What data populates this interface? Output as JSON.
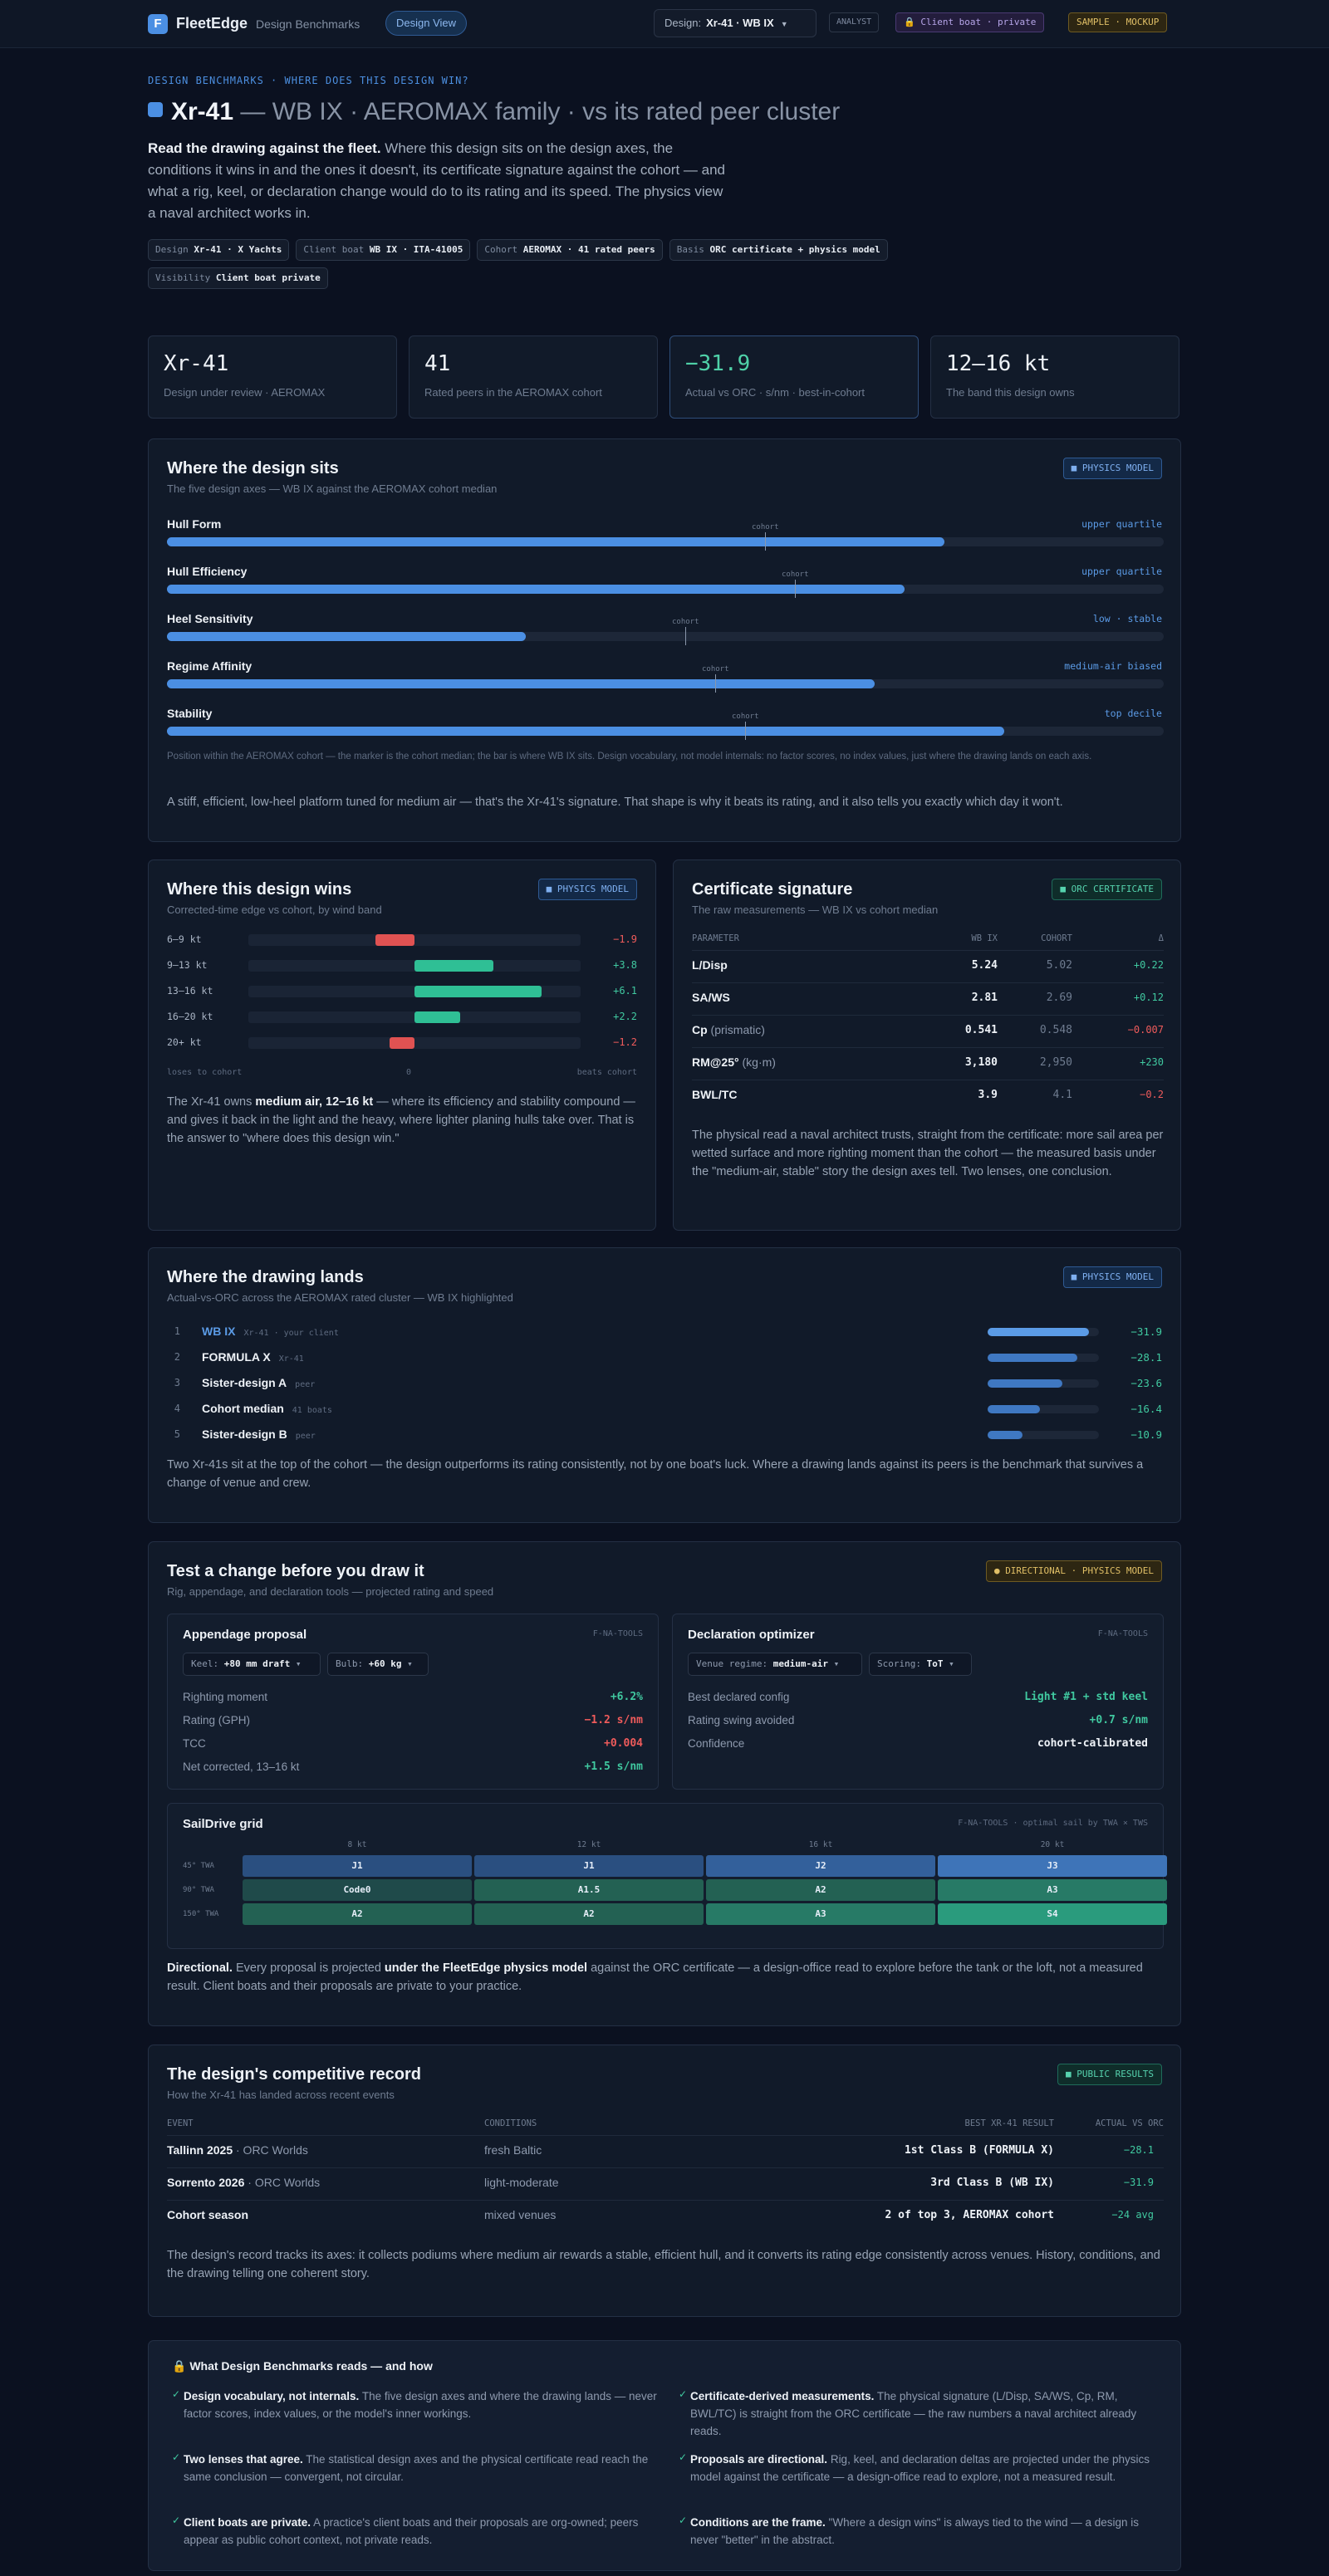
{
  "topbar": {
    "logo": "F",
    "brand": "FleetEdge",
    "subtitle": "Design Benchmarks",
    "view": "Design View",
    "design_label": "Design:",
    "design_value": "Xr-41 · WB IX",
    "analyst": "ANALYST",
    "client": "Client boat · private",
    "sample": "SAMPLE · MOCKUP"
  },
  "hero": {
    "eyebrow": "DESIGN BENCHMARKS · WHERE DOES THIS DESIGN WIN?",
    "title": "Xr-41",
    "title_rest": "— WB IX · AEROMAX family · vs its rated peer cluster",
    "lede_bold": "Read the drawing against the fleet.",
    "lede": " Where this design sits on the design axes, the conditions it wins in and the ones it doesn't, its certificate signature against the cohort — and what a rig, keel, or declaration change would do to its rating and its speed. The physics view a naval architect works in.",
    "chips": [
      {
        "k": "Design",
        "v": "Xr-41 · X Yachts"
      },
      {
        "k": "Client boat",
        "v": "WB IX · ITA-41005"
      },
      {
        "k": "Cohort",
        "v": "AEROMAX · 41 rated peers"
      },
      {
        "k": "Basis",
        "v": "ORC certificate + physics model"
      },
      {
        "k": "Visibility",
        "v": "Client boat private"
      }
    ]
  },
  "kpis": [
    {
      "v": "Xr-41",
      "l": "Design under review · AEROMAX"
    },
    {
      "v": "41",
      "l": "Rated peers in the AEROMAX cohort"
    },
    {
      "v": "−31.9",
      "l": "Actual vs ORC · s/nm · best-in-cohort"
    },
    {
      "v": "12–16 kt",
      "l": "The band this design owns"
    }
  ],
  "sits": {
    "title": "Where the design sits",
    "sub": "The five design axes — WB IX against the AEROMAX cohort median",
    "tag": "PHYSICS MODEL",
    "cohort_word": "cohort",
    "axes": [
      {
        "name": "Hull Form",
        "status": "upper quartile",
        "value": 0.78,
        "cohort": 0.6
      },
      {
        "name": "Hull Efficiency",
        "status": "upper quartile",
        "value": 0.74,
        "cohort": 0.63
      },
      {
        "name": "Heel Sensitivity",
        "status": "low · stable",
        "value": 0.36,
        "cohort": 0.52
      },
      {
        "name": "Regime Affinity",
        "status": "medium-air biased",
        "value": 0.71,
        "cohort": 0.55
      },
      {
        "name": "Stability",
        "status": "top decile",
        "value": 0.84,
        "cohort": 0.58
      }
    ],
    "note": "Position within the AEROMAX cohort — the marker is the cohort median; the bar is where WB IX sits. Design vocabulary, not model internals: no factor scores, no index values, just where the drawing lands on each axis.",
    "summary": "A stiff, efficient, low-heel platform tuned for medium air — that's the Xr-41's signature. That shape is why it beats its rating, and it also tells you exactly which day it won't."
  },
  "wins": {
    "title": "Where this design wins",
    "sub": "Corrected-time edge vs cohort, by wind band",
    "tag": "PHYSICS MODEL",
    "bands": [
      {
        "label": "6–9 kt",
        "value": -1.9,
        "text": "−1.9"
      },
      {
        "label": "9–13 kt",
        "value": 3.8,
        "text": "+3.8"
      },
      {
        "label": "13–16 kt",
        "value": 6.1,
        "text": "+6.1"
      },
      {
        "label": "16–20 kt",
        "value": 2.2,
        "text": "+2.2"
      },
      {
        "label": "20+ kt",
        "value": -1.2,
        "text": "−1.2"
      }
    ],
    "axis_left": "loses to cohort",
    "axis_mid": "0",
    "axis_right": "beats cohort",
    "text_a": "The Xr-41 owns ",
    "text_b": "medium air, 12–16 kt",
    "text_c": " — where its efficiency and stability compound — and gives it back in the light and the heavy, where lighter planing hulls take over. That is the answer to \"where does this design win.\""
  },
  "cert": {
    "title": "Certificate signature",
    "sub": "The raw measurements — WB IX vs cohort median",
    "tag": "ORC CERTIFICATE",
    "headers": [
      "PARAMETER",
      "WB IX",
      "COHORT",
      "Δ"
    ],
    "rows": [
      {
        "p": "L/Disp",
        "u": "",
        "wb": "5.24",
        "co": "5.02",
        "d": "+0.22",
        "s": "pos"
      },
      {
        "p": "SA/WS",
        "u": "",
        "wb": "2.81",
        "co": "2.69",
        "d": "+0.12",
        "s": "pos"
      },
      {
        "p": "Cp",
        "u": " (prismatic)",
        "wb": "0.541",
        "co": "0.548",
        "d": "−0.007",
        "s": "neg"
      },
      {
        "p": "RM@25°",
        "u": " (kg·m)",
        "wb": "3,180",
        "co": "2,950",
        "d": "+230",
        "s": "pos"
      },
      {
        "p": "BWL/TC",
        "u": "",
        "wb": "3.9",
        "co": "4.1",
        "d": "−0.2",
        "s": "neg"
      }
    ],
    "text": "The physical read a naval architect trusts, straight from the certificate: more sail area per wetted surface and more righting moment than the cohort — the measured basis under the \"medium-air, stable\" story the design axes tell. Two lenses, one conclusion."
  },
  "lands": {
    "title": "Where the drawing lands",
    "sub": "Actual-vs-ORC across the AEROMAX rated cluster — WB IX highlighted",
    "tag": "PHYSICS MODEL",
    "rows": [
      {
        "n": "1",
        "name": "WB IX",
        "meta": "Xr-41 · your client",
        "v": 31.9,
        "t": "−31.9"
      },
      {
        "n": "2",
        "name": "FORMULA X",
        "meta": "Xr-41",
        "v": 28.1,
        "t": "−28.1"
      },
      {
        "n": "3",
        "name": "Sister-design A",
        "meta": "peer",
        "v": 23.6,
        "t": "−23.6"
      },
      {
        "n": "4",
        "name": "Cohort median",
        "meta": "41 boats",
        "v": 16.4,
        "t": "−16.4"
      },
      {
        "n": "5",
        "name": "Sister-design B",
        "meta": "peer",
        "v": 10.9,
        "t": "−10.9"
      }
    ],
    "text": "Two Xr-41s sit at the top of the cohort — the design outperforms its rating consistently, not by one boat's luck. Where a drawing lands against its peers is the benchmark that survives a change of venue and crew."
  },
  "test": {
    "title": "Test a change before you draw it",
    "sub": "Rig, appendage, and declaration tools — projected rating and speed",
    "tag": "DIRECTIONAL · PHYSICS MODEL",
    "appendage": {
      "title": "Appendage proposal",
      "tool": "F-NA-TOOLS",
      "keel_k": "Keel:",
      "keel_v": "+80 mm draft",
      "bulb_k": "Bulb:",
      "bulb_v": "+60 kg",
      "rows": [
        {
          "l": "Righting moment",
          "v": "+6.2%",
          "s": "pos"
        },
        {
          "l": "Rating (GPH)",
          "v": "−1.2 s/nm",
          "s": "neg"
        },
        {
          "l": "TCC",
          "v": "+0.004",
          "s": "neg"
        },
        {
          "l": "Net corrected, 13–16 kt",
          "v": "+1.5 s/nm",
          "s": "pos"
        }
      ]
    },
    "decl": {
      "title": "Declaration optimizer",
      "tool": "F-NA-TOOLS",
      "venue_k": "Venue regime:",
      "venue_v": "medium-air",
      "scoring_k": "Scoring:",
      "scoring_v": "ToT",
      "rows": [
        {
          "l": "Best declared config",
          "v": "Light #1 + std keel",
          "s": "pos"
        },
        {
          "l": "Rating swing avoided",
          "v": "+0.7 s/nm",
          "s": "pos"
        },
        {
          "l": "Confidence",
          "v": "cohort-calibrated",
          "s": "white"
        }
      ]
    },
    "grid": {
      "title": "SailDrive grid",
      "tool": "F-NA-TOOLS · optimal sail by TWA × TWS",
      "cols": [
        "8 kt",
        "12 kt",
        "16 kt",
        "20 kt"
      ],
      "rows": [
        {
          "l": "45° TWA",
          "cells": [
            "J1",
            "J1",
            "J2",
            "J3"
          ]
        },
        {
          "l": "90° TWA",
          "cells": [
            "Code0",
            "A1.5",
            "A2",
            "A3"
          ]
        },
        {
          "l": "150° TWA",
          "cells": [
            "A2",
            "A2",
            "A3",
            "S4"
          ]
        }
      ]
    },
    "dir_bold": "Directional.",
    "dir_a": " Every proposal is projected ",
    "dir_b": "under the FleetEdge physics model",
    "dir_c": " against the ORC certificate — a design-office read to explore before the tank or the loft, not a measured result. Client boats and their proposals are private to your practice."
  },
  "record": {
    "title": "The design's competitive record",
    "sub": "How the Xr-41 has landed across recent events",
    "tag": "PUBLIC RESULTS",
    "headers": [
      "EVENT",
      "CONDITIONS",
      "BEST XR-41 RESULT",
      "ACTUAL VS ORC"
    ],
    "rows": [
      {
        "e": "Tallinn 2025",
        "m": " · ORC Worlds",
        "c": "fresh Baltic",
        "r": "1st Class B (FORMULA X)",
        "a": "−28.1"
      },
      {
        "e": "Sorrento 2026",
        "m": " · ORC Worlds",
        "c": "light-moderate",
        "r": "3rd Class B (WB IX)",
        "a": "−31.9"
      },
      {
        "e": "Cohort season",
        "m": "",
        "c": "mixed venues",
        "r": "2 of top 3, AEROMAX cohort",
        "a": "−24 avg"
      }
    ],
    "text": "The design's record tracks its axes: it collects podiums where medium air rewards a stable, efficient hull, and it converts its rating edge consistently across venues. History, conditions, and the drawing telling one coherent story."
  },
  "footer": {
    "title": "What Design Benchmarks reads — and how",
    "items": [
      {
        "b": "Design vocabulary, not internals.",
        "t": " The five design axes and where the drawing lands — never factor scores, index values, or the model's inner workings."
      },
      {
        "b": "Certificate-derived measurements.",
        "t": " The physical signature (L/Disp, SA/WS, Cp, RM, BWL/TC) is straight from the ORC certificate — the raw numbers a naval architect already reads."
      },
      {
        "b": "Two lenses that agree.",
        "t": " The statistical design axes and the physical certificate read reach the same conclusion — convergent, not circular."
      },
      {
        "b": "Proposals are directional.",
        "t": " Rig, keel, and declaration deltas are projected under the physics model against the certificate — a design-office read to explore, not a measured result."
      },
      {
        "b": "Client boats are private.",
        "t": " A practice's client boats and their proposals are org-owned; peers appear as public cohort context, not private reads."
      },
      {
        "b": "Conditions are the frame.",
        "t": " \"Where a design wins\" is always tied to the wind — a design is never \"better\" in the abstract."
      }
    ]
  },
  "colors": {
    "accent": "#4b8fe3",
    "positive": "#40c9a0",
    "negative": "#ef5b5b",
    "amber": "#e0bf66"
  }
}
